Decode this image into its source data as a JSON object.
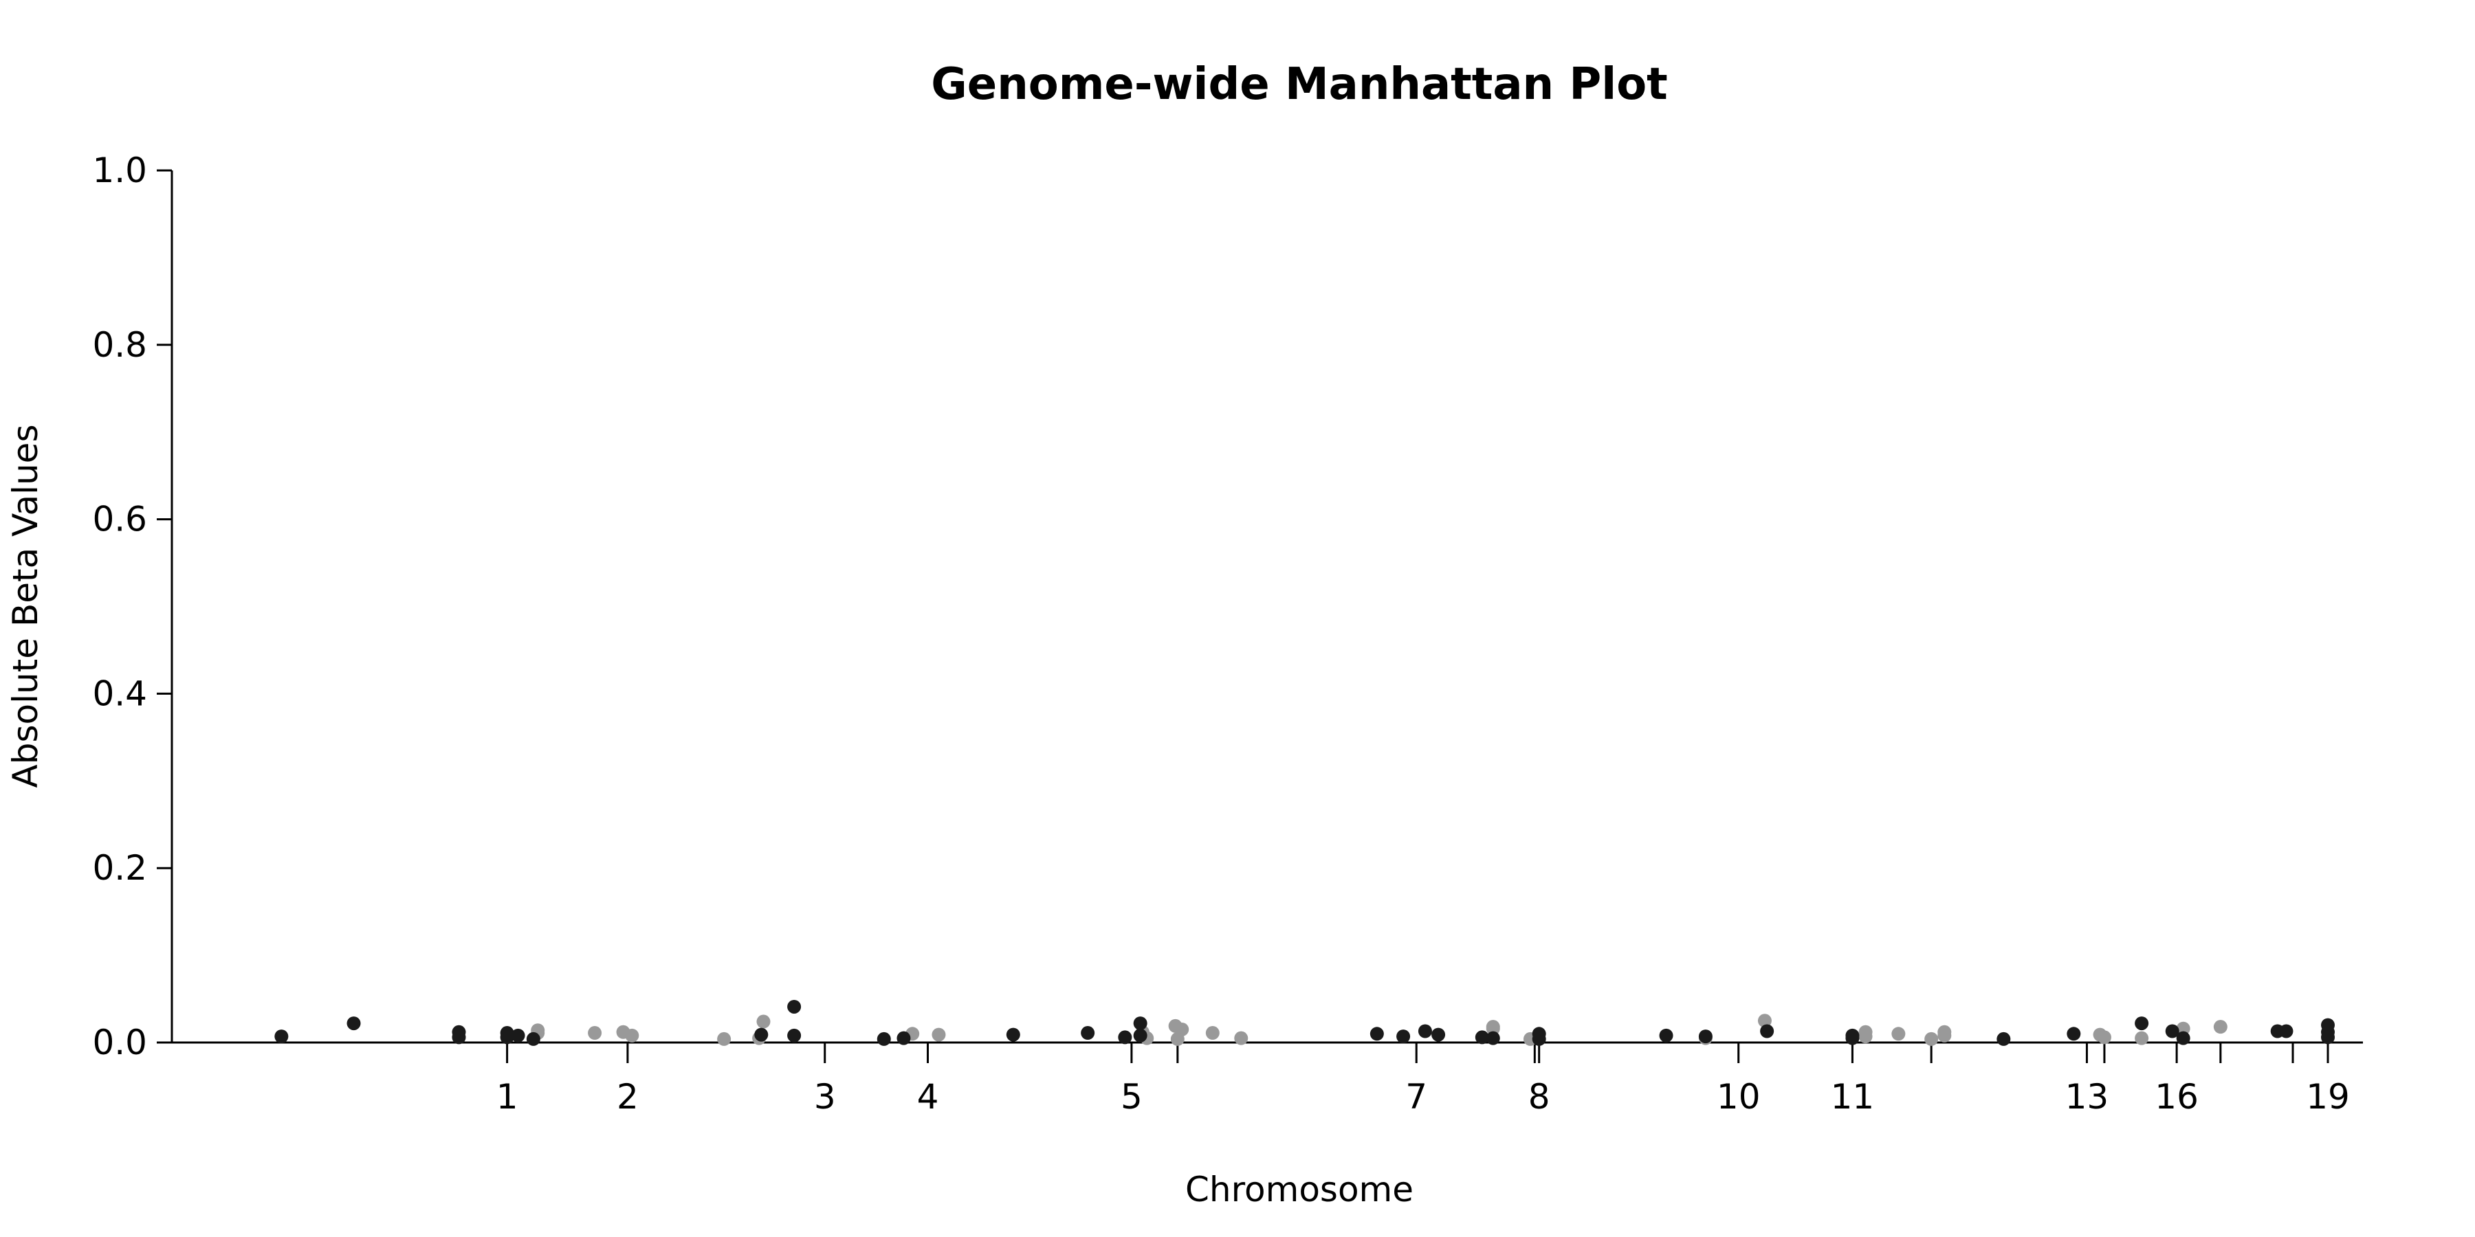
{
  "chart_data": {
    "type": "scatter",
    "title": "Genome-wide Manhattan Plot",
    "xlabel": "Chromosome",
    "ylabel": "Absolute Beta Values",
    "ylim": [
      0,
      1.0
    ],
    "yticks": [
      "0.0",
      "0.2",
      "0.4",
      "0.6",
      "0.8",
      "1.0"
    ],
    "xlim": [
      0,
      100
    ],
    "xticks": [
      {
        "label": "1",
        "x": 15.3
      },
      {
        "label": "2",
        "x": 20.8
      },
      {
        "label": "3",
        "x": 29.8
      },
      {
        "label": "4",
        "x": 34.5
      },
      {
        "label": "5",
        "x": 43.8
      },
      {
        "label": "",
        "x": 45.9
      },
      {
        "label": "7",
        "x": 56.8
      },
      {
        "label": "",
        "x": 62.2
      },
      {
        "label": "8",
        "x": 62.4
      },
      {
        "label": "10",
        "x": 71.5
      },
      {
        "label": "11",
        "x": 76.7
      },
      {
        "label": "",
        "x": 80.3
      },
      {
        "label": "13",
        "x": 87.4
      },
      {
        "label": "",
        "x": 88.2
      },
      {
        "label": "16",
        "x": 91.5
      },
      {
        "label": "",
        "x": 93.5
      },
      {
        "label": "",
        "x": 96.8
      },
      {
        "label": "19",
        "x": 98.4
      }
    ],
    "grid": false,
    "legend": "none",
    "colors": {
      "dark": "#1a1a1a",
      "light": "#999999"
    },
    "series": [
      {
        "color": "dark",
        "points": [
          [
            5.0,
            0.007
          ],
          [
            8.3,
            0.022
          ],
          [
            13.1,
            0.012
          ],
          [
            13.1,
            0.006
          ],
          [
            15.3,
            0.011
          ],
          [
            15.3,
            0.006
          ],
          [
            15.8,
            0.008
          ],
          [
            16.5,
            0.004
          ],
          [
            26.9,
            0.009
          ],
          [
            28.4,
            0.041
          ],
          [
            28.4,
            0.008
          ],
          [
            32.5,
            0.004
          ],
          [
            33.4,
            0.005
          ],
          [
            38.4,
            0.009
          ],
          [
            41.8,
            0.011
          ],
          [
            43.5,
            0.006
          ],
          [
            44.2,
            0.022
          ],
          [
            44.2,
            0.008
          ],
          [
            55.0,
            0.01
          ],
          [
            56.2,
            0.007
          ],
          [
            57.2,
            0.013
          ],
          [
            57.8,
            0.009
          ],
          [
            59.8,
            0.006
          ],
          [
            60.3,
            0.005
          ],
          [
            62.4,
            0.01
          ],
          [
            62.4,
            0.004
          ],
          [
            68.2,
            0.008
          ],
          [
            70.0,
            0.007
          ],
          [
            72.8,
            0.013
          ],
          [
            76.7,
            0.008
          ],
          [
            76.7,
            0.005
          ],
          [
            83.6,
            0.004
          ],
          [
            86.8,
            0.01
          ],
          [
            89.9,
            0.022
          ],
          [
            91.3,
            0.013
          ],
          [
            91.8,
            0.005
          ],
          [
            96.1,
            0.013
          ],
          [
            96.5,
            0.013
          ],
          [
            98.4,
            0.02
          ],
          [
            98.4,
            0.012
          ],
          [
            98.4,
            0.006
          ]
        ]
      },
      {
        "color": "light",
        "points": [
          [
            16.7,
            0.014
          ],
          [
            16.7,
            0.011
          ],
          [
            19.3,
            0.011
          ],
          [
            20.6,
            0.012
          ],
          [
            21.0,
            0.008
          ],
          [
            25.2,
            0.004
          ],
          [
            26.8,
            0.005
          ],
          [
            27.0,
            0.024
          ],
          [
            33.8,
            0.01
          ],
          [
            35.0,
            0.009
          ],
          [
            44.3,
            0.012
          ],
          [
            44.5,
            0.005
          ],
          [
            45.8,
            0.019
          ],
          [
            46.1,
            0.015
          ],
          [
            45.9,
            0.004
          ],
          [
            47.5,
            0.011
          ],
          [
            48.8,
            0.005
          ],
          [
            60.3,
            0.018
          ],
          [
            60.3,
            0.016
          ],
          [
            62.0,
            0.004
          ],
          [
            70.0,
            0.005
          ],
          [
            72.7,
            0.025
          ],
          [
            77.3,
            0.012
          ],
          [
            77.3,
            0.007
          ],
          [
            78.8,
            0.01
          ],
          [
            80.3,
            0.004
          ],
          [
            80.9,
            0.012
          ],
          [
            80.9,
            0.008
          ],
          [
            88.0,
            0.009
          ],
          [
            88.2,
            0.006
          ],
          [
            89.9,
            0.005
          ],
          [
            91.8,
            0.016
          ],
          [
            93.5,
            0.018
          ]
        ]
      }
    ]
  }
}
